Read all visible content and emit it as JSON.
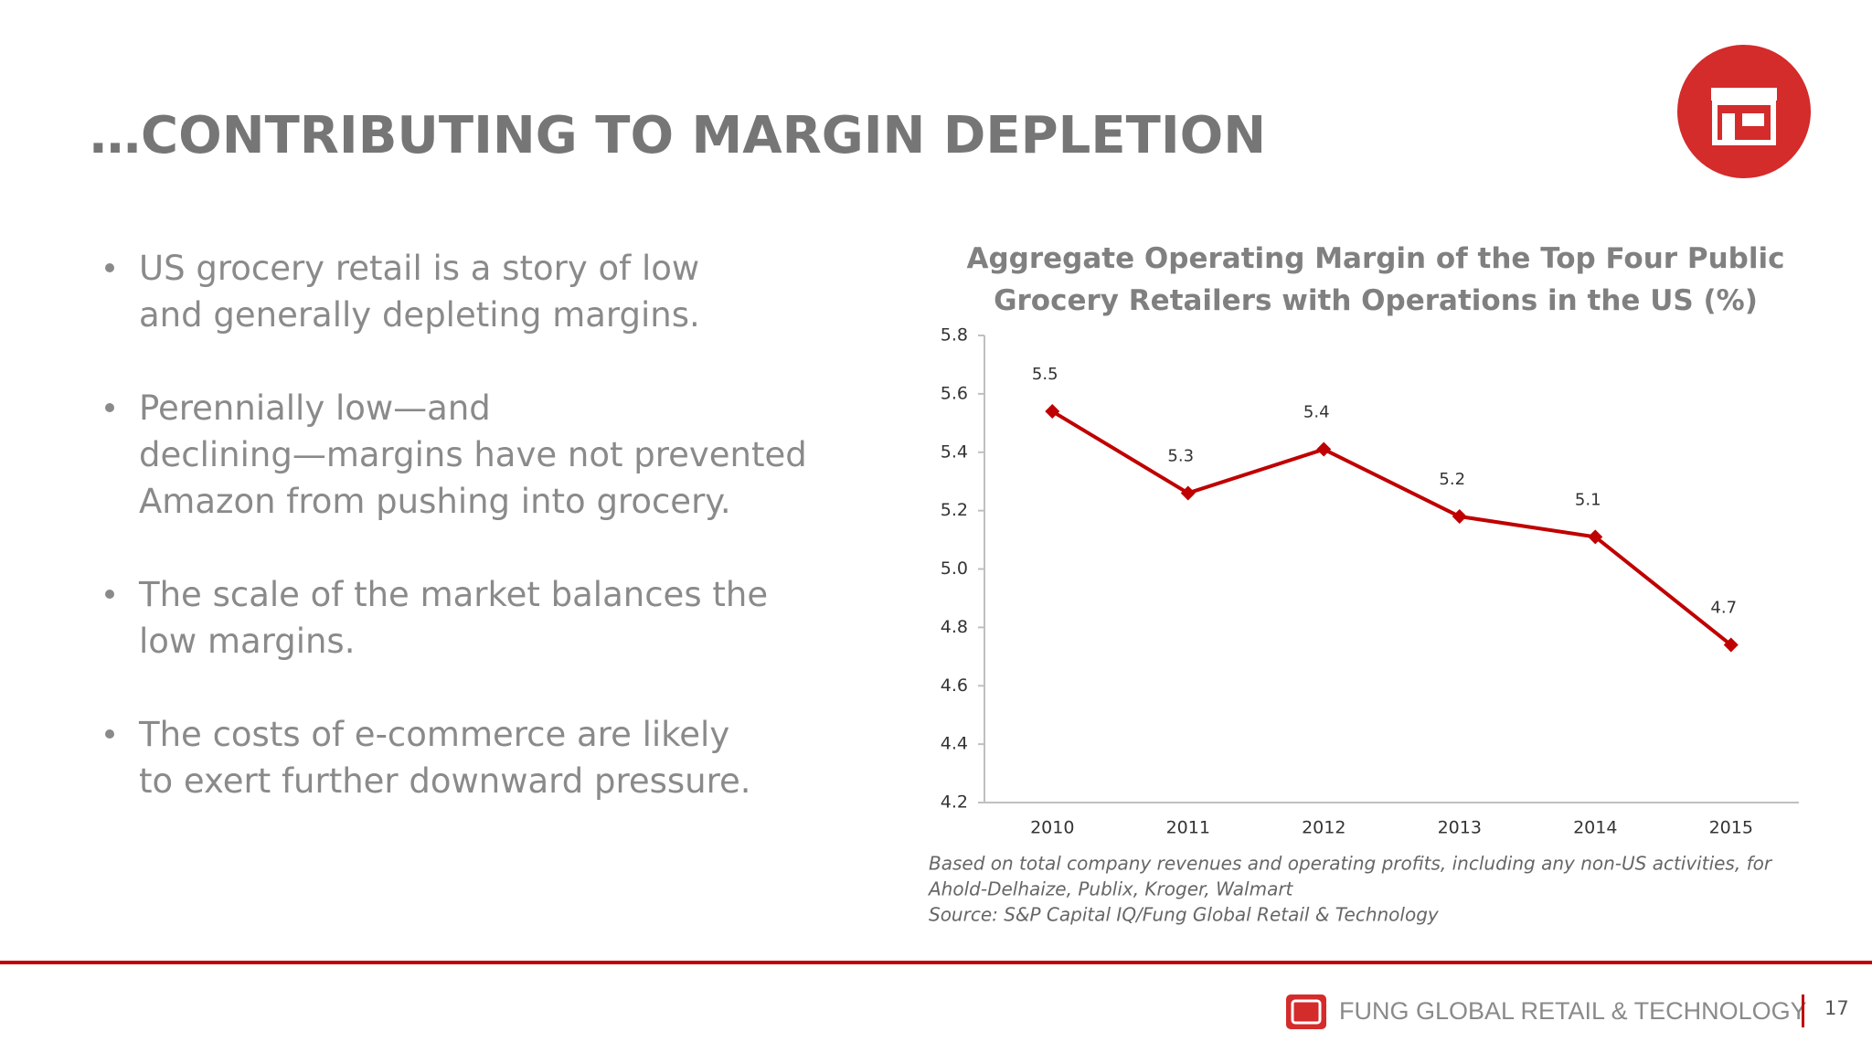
{
  "header": {
    "title": "…CONTRIBUTING TO MARGIN DEPLETION"
  },
  "bullets": [
    "US grocery retail is a story of low and generally depleting margins.",
    "Perennially low—and declining—margins have not prevented Amazon from pushing into grocery.",
    "The scale of the market balances the low margins.",
    "The costs of e-commerce are likely to exert further downward pressure."
  ],
  "chart_data": {
    "type": "line",
    "title": "Aggregate Operating Margin of the Top Four Public Grocery Retailers with Operations in the US (%)",
    "categories": [
      "2010",
      "2011",
      "2012",
      "2013",
      "2014",
      "2015"
    ],
    "values": [
      5.54,
      5.26,
      5.41,
      5.18,
      5.11,
      4.74
    ],
    "value_labels": [
      "5.5",
      "5.3",
      "5.4",
      "5.2",
      "5.1",
      "4.7"
    ],
    "color": "#c00000",
    "ylim": [
      4.2,
      5.8
    ],
    "yticks": [
      4.2,
      4.4,
      4.6,
      4.8,
      {
        "value": 5,
        "label": "5.0"
      },
      5.2,
      5.4,
      5.6,
      5.8
    ]
  },
  "notes": [
    "Based on total company revenues and operating profits, including any non-US activities, for",
    "Ahold-Delhaize, Publix, Kroger, Walmart",
    "Source: S&P Capital IQ/Fung Global Retail & Technology"
  ],
  "footer": {
    "brand": "FUNG GLOBAL RETAIL & TECHNOLOGY",
    "page_number": "17"
  }
}
